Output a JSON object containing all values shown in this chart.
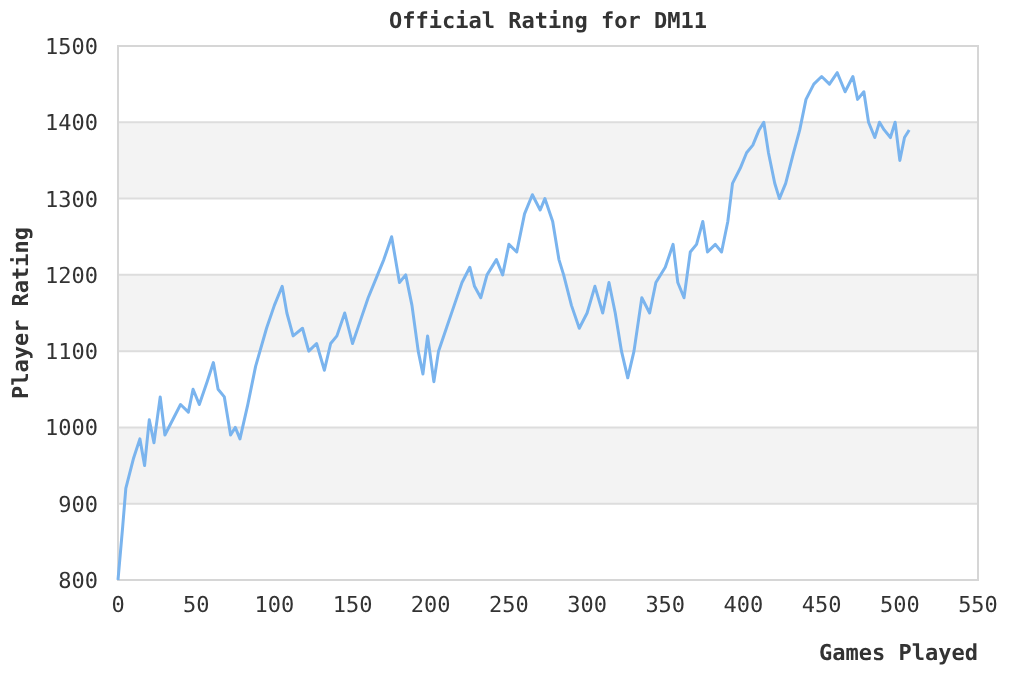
{
  "chart_data": {
    "type": "line",
    "title": "Official Rating for DM11",
    "xlabel": "Games Played",
    "ylabel": "Player Rating",
    "xlim": [
      0,
      550
    ],
    "xticks": [
      0,
      50,
      100,
      150,
      200,
      250,
      300,
      350,
      400,
      450,
      500,
      550
    ],
    "ylim": [
      800,
      1500
    ],
    "yticks": [
      800,
      900,
      1000,
      1100,
      1200,
      1300,
      1400,
      1500
    ],
    "grid": "y",
    "marker": "none",
    "line_style": "solid",
    "series": [
      {
        "color": "#7ab4ee",
        "x": [
          0,
          3,
          5,
          10,
          14,
          17,
          20,
          23,
          27,
          30,
          35,
          40,
          45,
          48,
          52,
          57,
          61,
          64,
          68,
          72,
          75,
          78,
          83,
          88,
          95,
          100,
          105,
          108,
          112,
          118,
          122,
          127,
          132,
          136,
          140,
          145,
          150,
          155,
          160,
          166,
          170,
          175,
          180,
          184,
          188,
          192,
          195,
          198,
          202,
          205,
          210,
          215,
          220,
          225,
          228,
          232,
          236,
          242,
          246,
          250,
          255,
          260,
          265,
          270,
          273,
          278,
          282,
          285,
          290,
          295,
          300,
          305,
          310,
          314,
          318,
          322,
          326,
          330,
          335,
          340,
          344,
          350,
          355,
          358,
          362,
          366,
          370,
          374,
          377,
          382,
          386,
          390,
          393,
          398,
          402,
          406,
          410,
          413,
          416,
          420,
          423,
          427,
          432,
          436,
          440,
          445,
          450,
          455,
          460,
          465,
          470,
          473,
          477,
          480,
          484,
          487,
          490,
          494,
          497,
          500,
          503,
          506
        ],
        "values": [
          800,
          870,
          920,
          960,
          985,
          950,
          1010,
          980,
          1040,
          990,
          1010,
          1030,
          1020,
          1050,
          1030,
          1060,
          1085,
          1050,
          1040,
          990,
          1000,
          985,
          1030,
          1080,
          1130,
          1160,
          1185,
          1150,
          1120,
          1130,
          1100,
          1110,
          1075,
          1110,
          1120,
          1150,
          1110,
          1140,
          1170,
          1200,
          1220,
          1250,
          1190,
          1200,
          1160,
          1100,
          1070,
          1120,
          1060,
          1100,
          1130,
          1160,
          1190,
          1210,
          1185,
          1170,
          1200,
          1220,
          1200,
          1240,
          1230,
          1280,
          1305,
          1285,
          1300,
          1270,
          1220,
          1200,
          1160,
          1130,
          1150,
          1185,
          1150,
          1190,
          1150,
          1100,
          1065,
          1100,
          1170,
          1150,
          1190,
          1210,
          1240,
          1190,
          1170,
          1230,
          1240,
          1270,
          1230,
          1240,
          1230,
          1270,
          1320,
          1340,
          1360,
          1370,
          1390,
          1400,
          1360,
          1320,
          1300,
          1320,
          1360,
          1390,
          1430,
          1450,
          1460,
          1450,
          1465,
          1440,
          1460,
          1430,
          1440,
          1400,
          1380,
          1400,
          1390,
          1380,
          1400,
          1350,
          1380,
          1390
        ]
      }
    ]
  }
}
